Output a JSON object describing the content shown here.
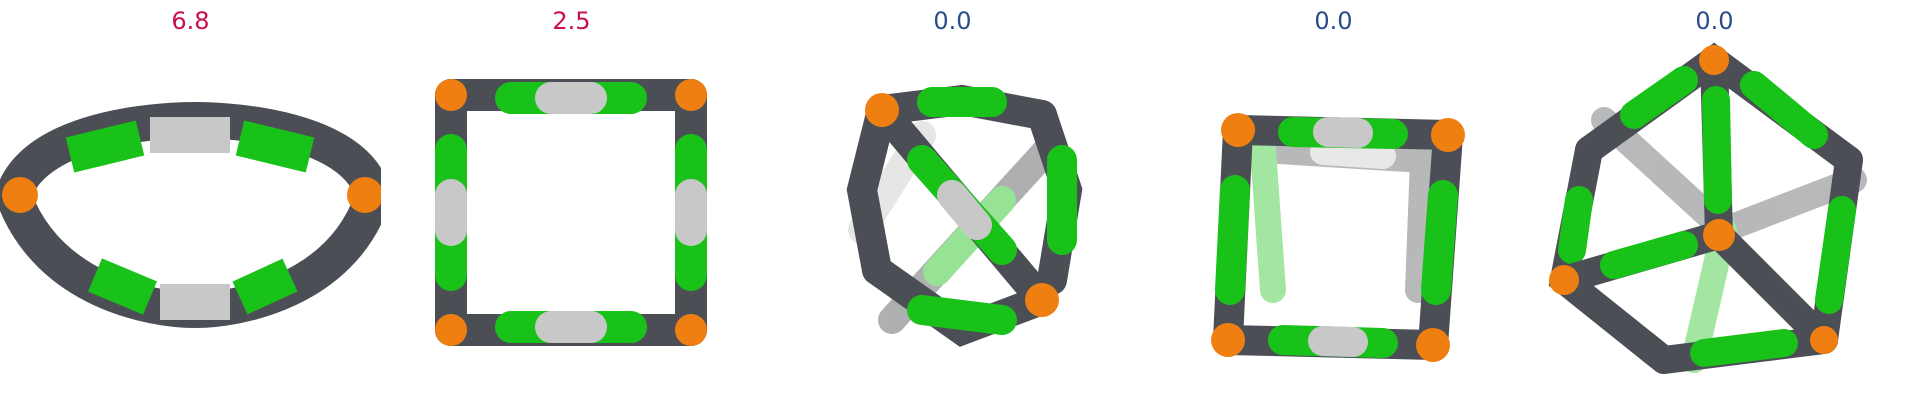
{
  "panels": [
    {
      "value": "6.8",
      "color": "#c8104a"
    },
    {
      "value": "2.5",
      "color": "#c8104a"
    },
    {
      "value": "0.0",
      "color": "#2a4d8c"
    },
    {
      "value": "0.0",
      "color": "#2a4d8c"
    },
    {
      "value": "0.0",
      "color": "#2a4d8c"
    }
  ],
  "atom_colors": {
    "vertex": "#f07f12",
    "carbon": "#4b4f55",
    "halogen": "#19c219",
    "hydrogen": "#c8c8c8"
  }
}
